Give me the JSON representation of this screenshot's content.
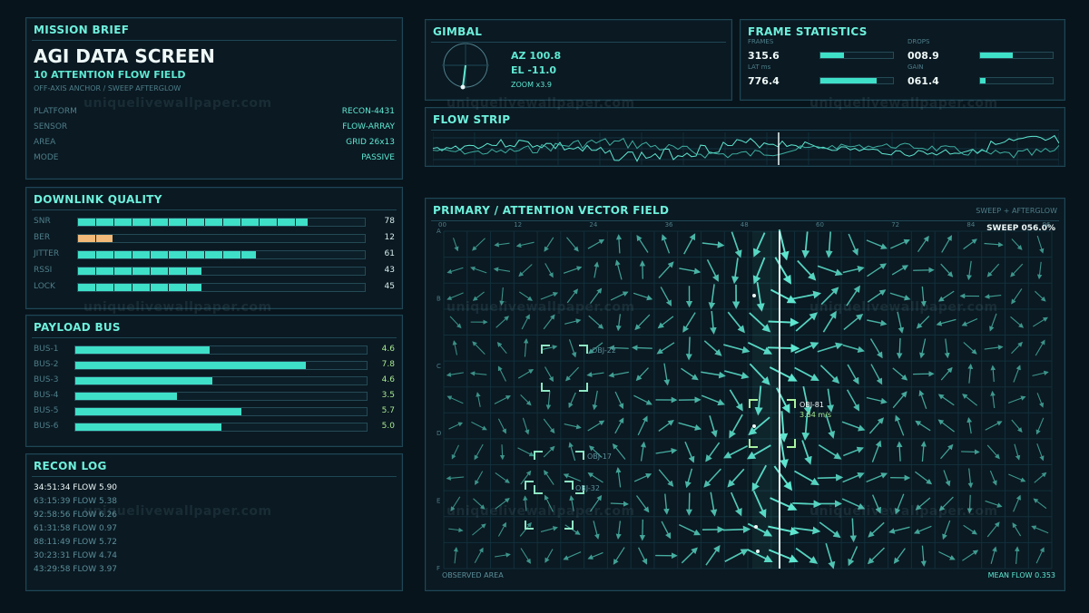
{
  "mission": {
    "title": "MISSION BRIEF",
    "heading": "AGI DATA SCREEN",
    "subheading": "10 ATTENTION FLOW FIELD",
    "caption": "OFF-AXIS ANCHOR / SWEEP AFTERGLOW",
    "rows": [
      {
        "label": "PLATFORM",
        "value": "RECON-4431"
      },
      {
        "label": "SENSOR",
        "value": "FLOW-ARRAY"
      },
      {
        "label": "AREA",
        "value": "GRID 26x13"
      },
      {
        "label": "MODE",
        "value": "PASSIVE"
      }
    ]
  },
  "downlink": {
    "title": "DOWNLINK QUALITY",
    "rows": [
      {
        "label": "SNR",
        "value": "78",
        "level": 0.8,
        "color": "#3fe0c8"
      },
      {
        "label": "BER",
        "value": "12",
        "level": 0.12,
        "color": "#f2b978"
      },
      {
        "label": "JITTER",
        "value": "61",
        "level": 0.62,
        "color": "#3fe0c8"
      },
      {
        "label": "RSSI",
        "value": "43",
        "level": 0.43,
        "color": "#3fe0c8"
      },
      {
        "label": "LOCK",
        "value": "45",
        "level": 0.43,
        "color": "#3fe0c8"
      }
    ]
  },
  "payload": {
    "title": "PAYLOAD BUS",
    "rows": [
      {
        "label": "BUS-1",
        "value": "4.6",
        "level": 0.46
      },
      {
        "label": "BUS-2",
        "value": "7.8",
        "level": 0.79
      },
      {
        "label": "BUS-3",
        "value": "4.6",
        "level": 0.47
      },
      {
        "label": "BUS-4",
        "value": "3.5",
        "level": 0.35
      },
      {
        "label": "BUS-5",
        "value": "5.7",
        "level": 0.57
      },
      {
        "label": "BUS-6",
        "value": "5.0",
        "level": 0.5
      }
    ]
  },
  "recon": {
    "title": "RECON LOG",
    "entries": [
      "34:51:34 FLOW 5.90",
      "63:15:39 FLOW 5.38",
      "92:58:56 FLOW 6.26",
      "61:31:58 FLOW 0.97",
      "88:11:49 FLOW 5.72",
      "30:23:31 FLOW 4.74",
      "43:29:58 FLOW 3.97"
    ]
  },
  "gimbal": {
    "title": "GIMBAL",
    "az": "AZ 100.8",
    "el": "EL -11.0",
    "zoom": "ZOOM x3.9"
  },
  "frame": {
    "title": "FRAME STATISTICS",
    "stats": [
      {
        "label": "FRAMES",
        "value": "315.6",
        "level": 0.33
      },
      {
        "label": "DROPS",
        "value": "008.9",
        "level": 0.45
      },
      {
        "label": "LAT ms",
        "value": "776.4",
        "level": 0.78
      },
      {
        "label": "GAIN",
        "value": "061.4",
        "level": 0.07
      }
    ]
  },
  "flowstrip": {
    "title": "FLOW STRIP"
  },
  "field": {
    "title": "PRIMARY / ATTENTION VECTOR FIELD",
    "mode": "SWEEP + AFTERGLOW",
    "sweep": "SWEEP 056.0%",
    "footer_left": "OBSERVED AREA",
    "footer_right": "MEAN FLOW 0.353",
    "col_ticks": [
      "00",
      "12",
      "24",
      "36",
      "48",
      "60",
      "72",
      "84",
      "96"
    ],
    "row_ticks": [
      "A",
      "B",
      "C",
      "D",
      "E",
      "F"
    ],
    "objects": [
      {
        "id": "OBJ-22",
        "sub": ""
      },
      {
        "id": "OBJ-81",
        "sub": "3.64 m/s"
      },
      {
        "id": "OBJ-17",
        "sub": ""
      },
      {
        "id": "OBJ-32",
        "sub": ""
      }
    ]
  },
  "watermark": "uniquelivewallpaper.com",
  "colors": {
    "accent": "#5fe8d2",
    "bar": "#3fe0c8",
    "warn": "#f2b978",
    "background": "#08141c"
  }
}
